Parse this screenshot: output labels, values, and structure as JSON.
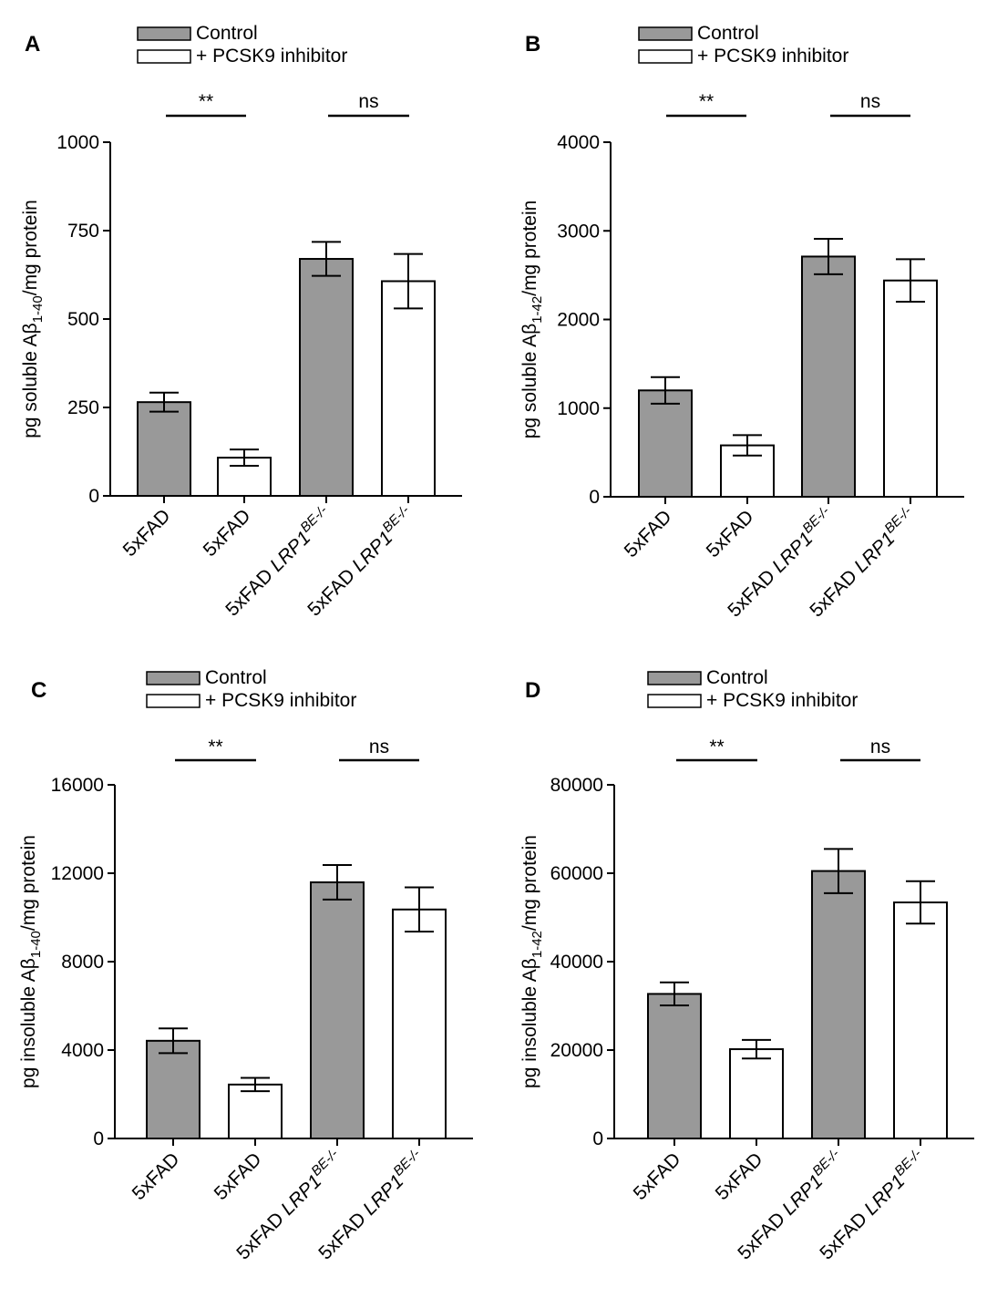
{
  "colors": {
    "control": "#999999",
    "inhibitor": "#ffffff",
    "stroke": "#000000"
  },
  "chart_data": [
    {
      "panel_label": "A",
      "type": "bar",
      "ylabel": {
        "pre": "pg soluble Aβ",
        "sub": "1-40",
        "post": "/mg protein"
      },
      "ylim": [
        0,
        1000
      ],
      "yticks": [
        "0",
        "250",
        "500",
        "750",
        "1000"
      ],
      "ytick_values": [
        0,
        250,
        500,
        750,
        1000
      ],
      "legend": [
        "Control",
        "+ PCSK9 inhibitor"
      ],
      "categories": [
        {
          "base": "5xFAD",
          "ital": "",
          "sup": ""
        },
        {
          "base": "5xFAD",
          "ital": "",
          "sup": ""
        },
        {
          "base": "5xFAD ",
          "ital": "LRP1",
          "sup": "BE-/-"
        },
        {
          "base": "5xFAD ",
          "ital": "LRP1",
          "sup": "BE-/-"
        }
      ],
      "series": [
        {
          "name": "Control"
        },
        {
          "name": "+ PCSK9 inhibitor"
        }
      ],
      "values": [
        265,
        108,
        670,
        607
      ],
      "errors": [
        27,
        23,
        48,
        77
      ],
      "groups": [
        "control",
        "inhibitor",
        "control",
        "inhibitor"
      ],
      "significance": [
        "**",
        "ns"
      ]
    },
    {
      "panel_label": "B",
      "type": "bar",
      "ylabel": {
        "pre": "pg soluble Aβ",
        "sub": "1-42",
        "post": "/mg protein"
      },
      "ylim": [
        0,
        4000
      ],
      "yticks": [
        "0",
        "1000",
        "2000",
        "3000",
        "4000"
      ],
      "ytick_values": [
        0,
        1000,
        2000,
        3000,
        4000
      ],
      "legend": [
        "Control",
        "+ PCSK9 inhibitor"
      ],
      "categories": [
        {
          "base": "5xFAD",
          "ital": "",
          "sup": ""
        },
        {
          "base": "5xFAD",
          "ital": "",
          "sup": ""
        },
        {
          "base": "5xFAD ",
          "ital": "LRP1",
          "sup": "BE-/-"
        },
        {
          "base": "5xFAD ",
          "ital": "LRP1",
          "sup": "BE-/-"
        }
      ],
      "series": [
        {
          "name": "Control"
        },
        {
          "name": "+ PCSK9 inhibitor"
        }
      ],
      "values": [
        1200,
        580,
        2710,
        2440
      ],
      "errors": [
        150,
        115,
        200,
        240
      ],
      "groups": [
        "control",
        "inhibitor",
        "control",
        "inhibitor"
      ],
      "significance": [
        "**",
        "ns"
      ]
    },
    {
      "panel_label": "C",
      "type": "bar",
      "ylabel": {
        "pre": "pg insoluble Aβ",
        "sub": "1-40",
        "post": "/mg protein"
      },
      "ylim": [
        0,
        16000
      ],
      "yticks": [
        "0",
        "4000",
        "8000",
        "12000",
        "16000"
      ],
      "ytick_values": [
        0,
        4000,
        8000,
        12000,
        16000
      ],
      "legend": [
        "Control",
        "+ PCSK9 inhibitor"
      ],
      "categories": [
        {
          "base": "5xFAD",
          "ital": "",
          "sup": ""
        },
        {
          "base": "5xFAD",
          "ital": "",
          "sup": ""
        },
        {
          "base": "5xFAD ",
          "ital": "LRP1",
          "sup": "BE-/-"
        },
        {
          "base": "5xFAD ",
          "ital": "LRP1",
          "sup": "BE-/-"
        }
      ],
      "series": [
        {
          "name": "Control"
        },
        {
          "name": "+ PCSK9 inhibitor"
        }
      ],
      "values": [
        4420,
        2440,
        11590,
        10360
      ],
      "errors": [
        560,
        300,
        780,
        1000
      ],
      "groups": [
        "control",
        "inhibitor",
        "control",
        "inhibitor"
      ],
      "significance": [
        "**",
        "ns"
      ]
    },
    {
      "panel_label": "D",
      "type": "bar",
      "ylabel": {
        "pre": "pg insoluble Aβ",
        "sub": "1-42",
        "post": "/mg protein"
      },
      "ylim": [
        0,
        80000
      ],
      "yticks": [
        "0",
        "20000",
        "40000",
        "60000",
        "80000"
      ],
      "ytick_values": [
        0,
        20000,
        40000,
        60000,
        80000
      ],
      "legend": [
        "Control",
        "+ PCSK9 inhibitor"
      ],
      "categories": [
        {
          "base": "5xFAD",
          "ital": "",
          "sup": ""
        },
        {
          "base": "5xFAD",
          "ital": "",
          "sup": ""
        },
        {
          "base": "5xFAD ",
          "ital": "LRP1",
          "sup": "BE-/-"
        },
        {
          "base": "5xFAD ",
          "ital": "LRP1",
          "sup": "BE-/-"
        }
      ],
      "series": [
        {
          "name": "Control"
        },
        {
          "name": "+ PCSK9 inhibitor"
        }
      ],
      "values": [
        32700,
        20200,
        60500,
        53400
      ],
      "errors": [
        2600,
        2100,
        5000,
        4800
      ],
      "groups": [
        "control",
        "inhibitor",
        "control",
        "inhibitor"
      ],
      "significance": [
        "**",
        "ns"
      ]
    }
  ]
}
